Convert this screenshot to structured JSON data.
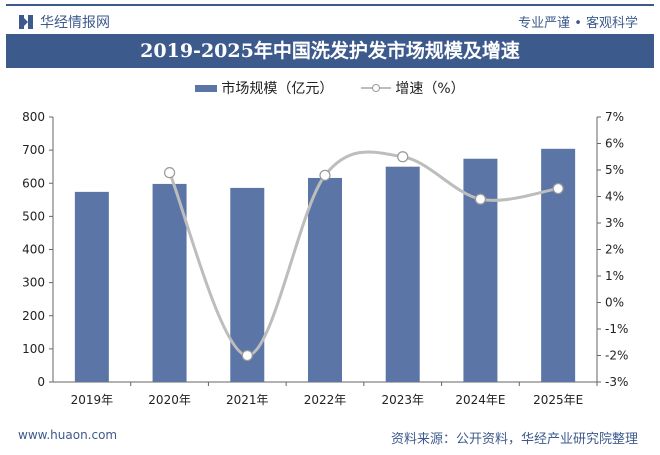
{
  "header": {
    "brand": "华经情报网",
    "slogan": "专业严谨 • 客观科学",
    "title": "2019-2025年中国洗发护发市场规模及增速"
  },
  "footer": {
    "website": "www.huaon.com",
    "source": "资料来源：公开资料，华经产业研究院整理"
  },
  "colors": {
    "bar": "#5b76a6",
    "line": "#bdbdbd",
    "brand": "#3d5a8c"
  },
  "chart_data": {
    "type": "bar+line",
    "title": "2019-2025年中国洗发护发市场规模及增速",
    "categories": [
      "2019年",
      "2020年",
      "2021年",
      "2022年",
      "2023年",
      "2024年E",
      "2025年E"
    ],
    "series": [
      {
        "name": "市场规模（亿元）",
        "type": "bar",
        "axis": "left",
        "values": [
          574,
          598,
          586,
          616,
          650,
          674,
          704
        ]
      },
      {
        "name": "增速（%）",
        "type": "line",
        "axis": "right",
        "values": [
          null,
          4.9,
          -2.0,
          4.8,
          5.5,
          3.9,
          4.3
        ]
      }
    ],
    "ylim": [
      0,
      800
    ],
    "yticks": [
      "0",
      "100",
      "200",
      "300",
      "400",
      "500",
      "600",
      "700",
      "800"
    ],
    "y2lim": [
      -3,
      7
    ],
    "y2ticks": [
      "-3%",
      "-2%",
      "-1%",
      "0%",
      "1%",
      "2%",
      "3%",
      "4%",
      "5%",
      "6%",
      "7%"
    ],
    "legend": "top",
    "grid": false
  }
}
